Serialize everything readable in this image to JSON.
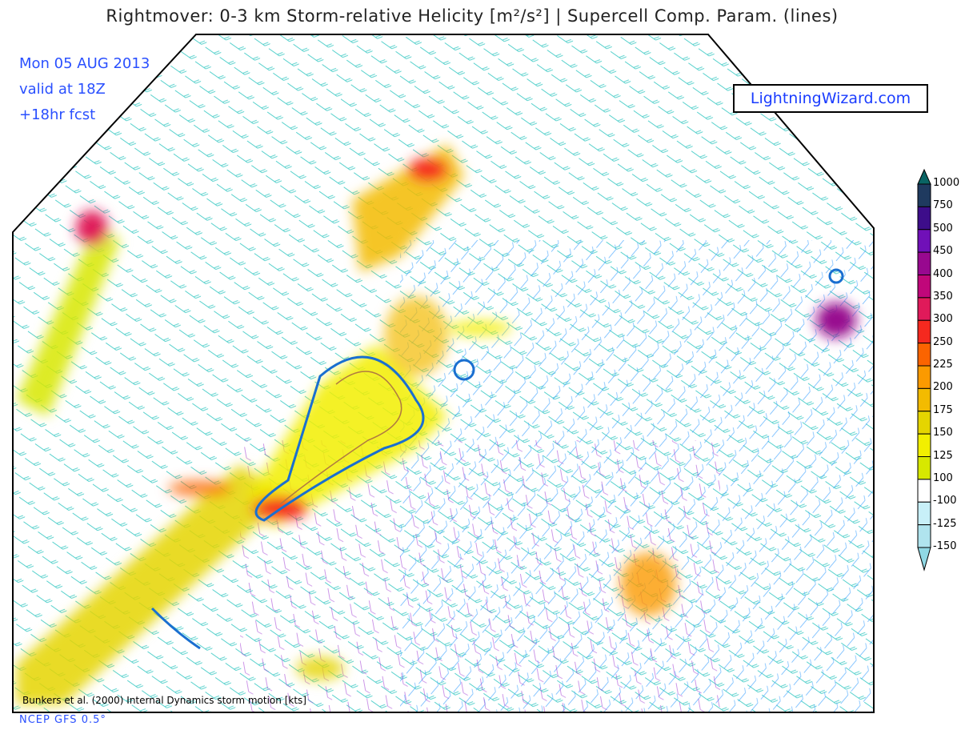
{
  "header": {
    "title": "Rightmover: 0-3 km Storm-relative Helicity [m²/s²] | Supercell Comp. Param. (lines)"
  },
  "info": {
    "date": "Mon 05 AUG 2013",
    "valid": "valid at 18Z",
    "forecast": "+18hr fcst"
  },
  "brand": "LightningWizard.com",
  "credit": "Bunkers et al. (2000) Internal Dynamics storm motion [kts]",
  "model": "NCEP GFS 0.5°",
  "colorbar": {
    "labels": [
      "1000",
      "750",
      "500",
      "450",
      "400",
      "350",
      "300",
      "250",
      "225",
      "200",
      "175",
      "150",
      "125",
      "100",
      "-100",
      "-125",
      "-150"
    ],
    "colors": [
      "#1f3a5f",
      "#3d0d8a",
      "#7010b8",
      "#98088f",
      "#c0077a",
      "#e01a5a",
      "#f5291f",
      "#fb6400",
      "#fb9a00",
      "#f3bb00",
      "#e5d500",
      "#f2ef00",
      "#d7e800",
      "#ffffff",
      "#c8f0f8",
      "#b0e4ee"
    ],
    "top_arrow_color": "#0a6464",
    "bottom_arrow_color": "#90d8e4"
  }
}
